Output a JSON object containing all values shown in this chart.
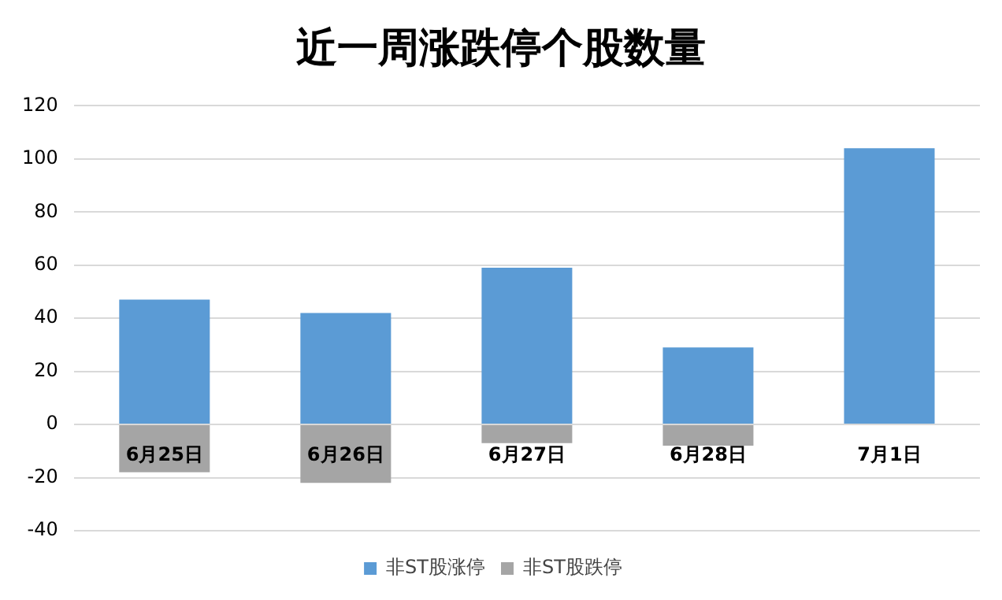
{
  "chart_data": {
    "type": "bar",
    "title": "近一周涨跌停个股数量",
    "categories": [
      "6月25日",
      "6月26日",
      "6月27日",
      "6月28日",
      "7月1日"
    ],
    "series": [
      {
        "name": "非ST股涨停",
        "color": "#5b9bd5",
        "values": [
          47,
          42,
          59,
          29,
          104
        ]
      },
      {
        "name": "非ST股跌停",
        "color": "#a5a5a5",
        "values": [
          -18,
          -22,
          -7,
          -8,
          null
        ]
      }
    ],
    "stacked": true,
    "ylim": [
      -40,
      120
    ],
    "yticks": [
      -40,
      -20,
      0,
      20,
      40,
      60,
      80,
      100,
      120
    ],
    "grid": "y",
    "legend": "bottom"
  }
}
